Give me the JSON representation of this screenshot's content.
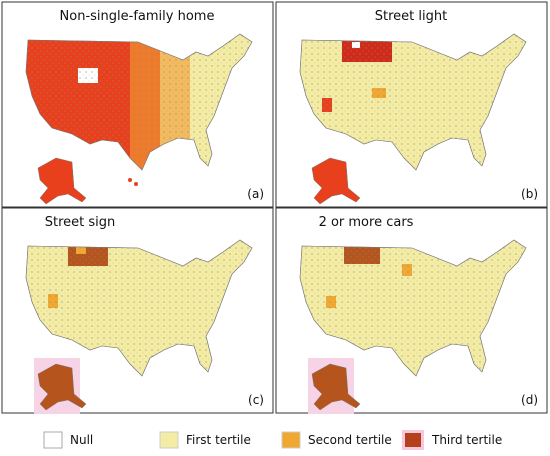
{
  "panels": [
    {
      "title": "Non-single-family home",
      "label": "(a)"
    },
    {
      "title": "Street light",
      "label": "(b)"
    },
    {
      "title": "Street sign",
      "label": "(c)"
    },
    {
      "title": "2 or more cars",
      "label": "(d)"
    }
  ],
  "legend": [
    {
      "label": "Null"
    },
    {
      "label": "First tertile"
    },
    {
      "label": "Second tertile"
    },
    {
      "label": "Third tertile"
    }
  ]
}
